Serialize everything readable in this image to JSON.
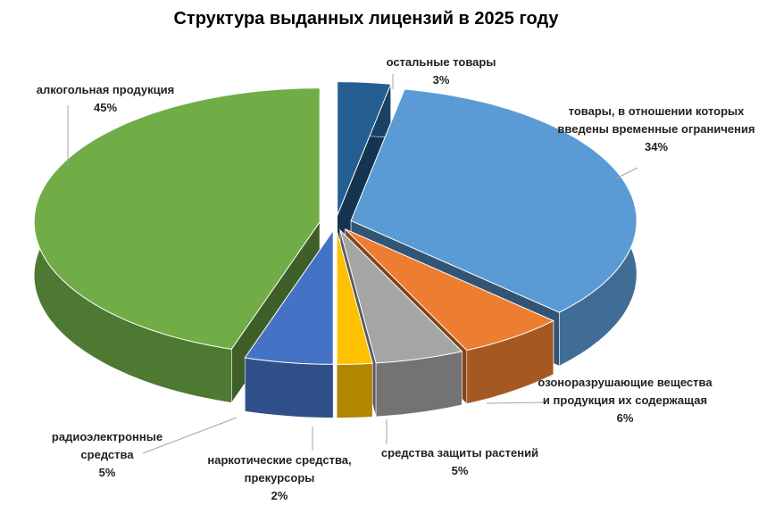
{
  "chart_data": {
    "type": "pie3d",
    "title": "Структура выданных лицензий в 2025 году",
    "categories": [
      "остальные товары",
      "товары, в отношении которых введены временные ограничения",
      "озоноразрушающие вещества и продукция их содержащая",
      "средства защиты растений",
      "наркотические средства, прекурсоры",
      "радиоэлектронные средства",
      "алкогольная продукция"
    ],
    "values": [
      3,
      34,
      6,
      5,
      2,
      5,
      45
    ],
    "value_labels": [
      "3%",
      "34%",
      "6%",
      "5%",
      "2%",
      "5%",
      "45%"
    ],
    "colors": [
      "#255e91",
      "#5b9bd5",
      "#ed7d31",
      "#a5a5a5",
      "#ffc000",
      "#4472c4",
      "#70ad47"
    ]
  }
}
